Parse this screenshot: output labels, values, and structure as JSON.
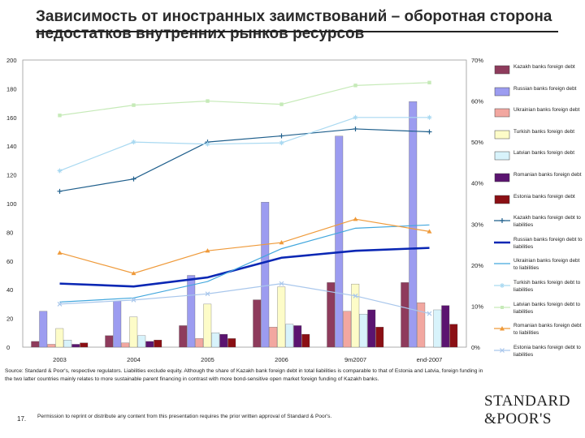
{
  "title": "Зависимость от иностранных заимствований – оборотная сторона недостатков внутренних рынков ресурсов",
  "footnote": "Source: Standard & Poor's, respective regulators. Liabilities exclude equity. Although the share of Kazakh bank foreign debt in total liabilities is comparable to that of Estonia and Latvia, foreign funding in the two latter countries mainly relates to more sustainable parent financing in contrast with more bond-sensitive open market foreign funding of Kazakh banks.",
  "page_number": "17.",
  "permission": "Permission to reprint or distribute any content from this presentation requires the prior written approval of Standard & Poor's.",
  "logo": {
    "line1": "STANDARD",
    "line2": "&POOR'S"
  },
  "chart_data": {
    "type": "bar",
    "categories": [
      "2003",
      "2004",
      "2005",
      "2006",
      "9m2007",
      "end-2007"
    ],
    "y_left": {
      "min": 0,
      "max": 200,
      "ticks": [
        "0",
        "20",
        "40",
        "60",
        "80",
        "100",
        "120",
        "140",
        "160",
        "180",
        "200"
      ]
    },
    "y_right": {
      "min": 0,
      "max": 70,
      "ticks": [
        "0%",
        "10%",
        "20%",
        "30%",
        "40%",
        "50%",
        "60%",
        "70%"
      ]
    },
    "bar_series": [
      {
        "name": "Kazakh banks foreign debt",
        "color": "#8e3b5c",
        "values": [
          4,
          8,
          15,
          33,
          45,
          45
        ]
      },
      {
        "name": "Russian banks foreign debt",
        "color": "#9c9cf0",
        "values": [
          25,
          32,
          50,
          101,
          147,
          171
        ]
      },
      {
        "name": "Ukrainian banks foreign debt",
        "color": "#f2a7a0",
        "values": [
          2,
          3,
          6,
          14,
          25,
          31
        ]
      },
      {
        "name": "Turkish banks foreign debt",
        "color": "#fdfcc8",
        "values": [
          13,
          21,
          30,
          42,
          44,
          0
        ]
      },
      {
        "name": "Latvian banks foreign debt",
        "color": "#d8f3fb",
        "values": [
          5,
          8,
          10,
          16,
          23,
          26
        ]
      },
      {
        "name": "Romanian banks foreign debt",
        "color": "#5b1470",
        "values": [
          2,
          4,
          9,
          15,
          26,
          29
        ]
      },
      {
        "name": "Estonia banks foreign debt",
        "color": "#8b0f14",
        "values": [
          3,
          5,
          6,
          9,
          14,
          16
        ]
      }
    ],
    "line_series": [
      {
        "name": "Kazakh banks foreign debt to liabilities",
        "color": "#1f5f8c",
        "marker": "plus",
        "width": 1.2,
        "values": [
          38,
          41,
          50,
          51.5,
          53.2,
          52.5
        ]
      },
      {
        "name": "Russian banks foreign debt to liabilities",
        "color": "#0a27b4",
        "marker": "none",
        "width": 2.6,
        "values": [
          15.5,
          14.8,
          17,
          21.8,
          23.5,
          24.2
        ]
      },
      {
        "name": "Ukrainian banks foreign debt to liabilities",
        "color": "#42a7dd",
        "marker": "none",
        "width": 1.2,
        "values": [
          11,
          12,
          16,
          24,
          29,
          29.8
        ]
      },
      {
        "name": "Turkish banks foreign debt to liabilities",
        "color": "#a9d9f1",
        "marker": "star",
        "width": 1.2,
        "values": [
          43,
          50,
          49.5,
          49.8,
          56,
          56
        ]
      },
      {
        "name": "Latvian banks foreign debt to liabilities",
        "color": "#c6eab8",
        "marker": "square",
        "width": 1.2,
        "values": [
          56.5,
          59,
          60,
          59.2,
          63.8,
          64.5
        ]
      },
      {
        "name": "Romanian banks foreign debt to liabilities",
        "color": "#ef9a3a",
        "marker": "triangle",
        "width": 1.2,
        "values": [
          23,
          18,
          23.5,
          25.5,
          31.2,
          28.2
        ]
      },
      {
        "name": "Estonia banks foreign debt to liabilities",
        "color": "#a9c7ec",
        "marker": "cross",
        "width": 1.2,
        "values": [
          10.5,
          11.5,
          13,
          15.5,
          12.5,
          8.2
        ]
      }
    ],
    "legend_position": "right"
  }
}
